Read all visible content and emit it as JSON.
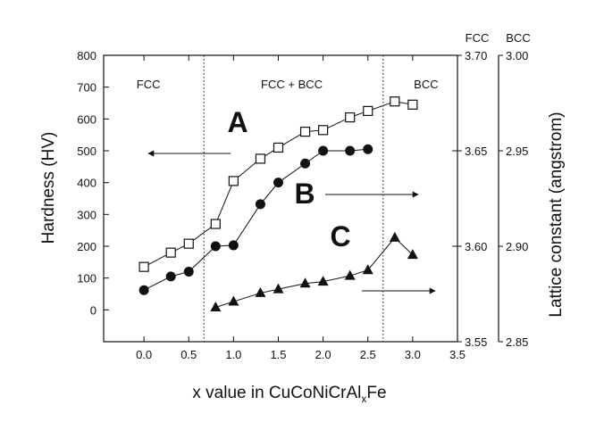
{
  "chart_data": {
    "type": "scatter",
    "xlabel": "x value in CuCoNiCrAl",
    "xlabel_subscript": "x",
    "xlabel_suffix": "Fe",
    "ylabel_left": "Hardness (HV)",
    "ylabel_right": "Lattice constant (angstrom)",
    "xlim": [
      -0.45,
      3.5
    ],
    "ylim_left": [
      -100,
      800
    ],
    "ylim_right_fcc": [
      3.55,
      3.7
    ],
    "ylim_right_bcc": [
      2.85,
      3.0
    ],
    "x_ticks": [
      "0.0",
      "0.5",
      "1.0",
      "1.5",
      "2.0",
      "2.5",
      "3.0",
      "3.5"
    ],
    "y_ticks_left": [
      "0",
      "100",
      "200",
      "300",
      "400",
      "500",
      "600",
      "700",
      "800"
    ],
    "y_ticks_right_fcc": [
      "3.55",
      "3.60",
      "3.65",
      "3.70"
    ],
    "y_ticks_right_bcc": [
      "2.85",
      "2.90",
      "2.95",
      "3.00"
    ],
    "right_headers": [
      "FCC",
      "BCC"
    ],
    "phase_boundaries": [
      0.67,
      2.67
    ],
    "regions": [
      {
        "label": "FCC",
        "x": 0.05
      },
      {
        "label": "FCC + BCC",
        "x": 1.65
      },
      {
        "label": "BCC",
        "x": 3.15
      }
    ],
    "series": [
      {
        "marker": "open-square",
        "axis": "left",
        "letter": "A",
        "x": [
          0.0,
          0.3,
          0.5,
          0.8,
          1.0,
          1.3,
          1.5,
          1.8,
          2.0,
          2.3,
          2.5,
          2.8,
          3.0
        ],
        "y": [
          135,
          180,
          208,
          270,
          405,
          475,
          510,
          560,
          565,
          605,
          625,
          655,
          645
        ]
      },
      {
        "marker": "filled-circle",
        "axis": "left",
        "letter": "B",
        "x": [
          0.0,
          0.3,
          0.5,
          0.8,
          1.0,
          1.3,
          1.5,
          1.8,
          2.0,
          2.3,
          2.5
        ],
        "y": [
          62,
          105,
          120,
          200,
          203,
          332,
          400,
          460,
          500,
          500,
          505
        ]
      },
      {
        "marker": "filled-triangle",
        "axis": "right_fcc",
        "letter": "C",
        "x": [
          0.8,
          1.0,
          1.3,
          1.5,
          1.8,
          2.0,
          2.3,
          2.5,
          2.8,
          3.0
        ],
        "y": [
          3.568,
          3.571,
          3.5755,
          3.5775,
          3.5805,
          3.5815,
          3.5845,
          3.5875,
          3.6045,
          3.5955
        ]
      }
    ],
    "arrows": [
      {
        "series": "A",
        "direction": "left"
      },
      {
        "series": "B",
        "direction": "right"
      },
      {
        "series": "C",
        "direction": "right"
      }
    ]
  }
}
